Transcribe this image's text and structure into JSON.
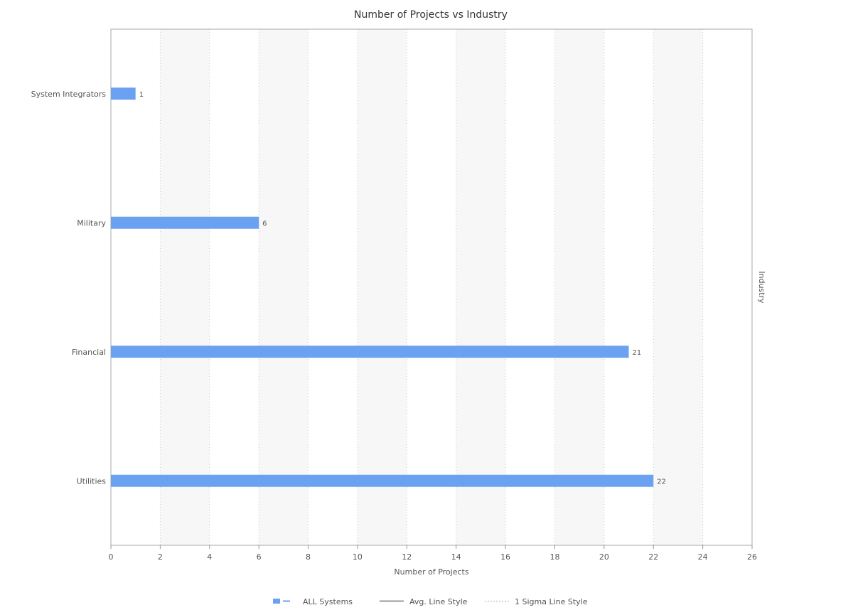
{
  "chart_data": {
    "type": "bar",
    "orientation": "horizontal",
    "title": "Number of Projects vs Industry",
    "xlabel": "Number of Projects",
    "ylabel": "Industry",
    "xlim": [
      0,
      26
    ],
    "xticks": [
      0,
      2,
      4,
      6,
      8,
      10,
      12,
      14,
      16,
      18,
      20,
      22,
      24,
      26
    ],
    "categories": [
      "System Integrators",
      "Military",
      "Financial",
      "Utilities"
    ],
    "series": [
      {
        "name": "ALL Systems",
        "values": [
          1,
          6,
          21,
          22
        ],
        "color": "#6aa1f0"
      }
    ],
    "data_labels": true,
    "grid": "vertical dotted, alternating bands",
    "legend": {
      "placement": "bottom-center",
      "items": [
        {
          "label": "ALL Systems",
          "style": "bar"
        },
        {
          "label": "Avg. Line Style",
          "style": "solid"
        },
        {
          "label": "1 Sigma Line Style",
          "style": "dashed"
        }
      ]
    },
    "colors": {
      "bar": "#6aa1f0",
      "band": "#f7f7f7",
      "axis": "#999999",
      "text": "#555555"
    }
  }
}
